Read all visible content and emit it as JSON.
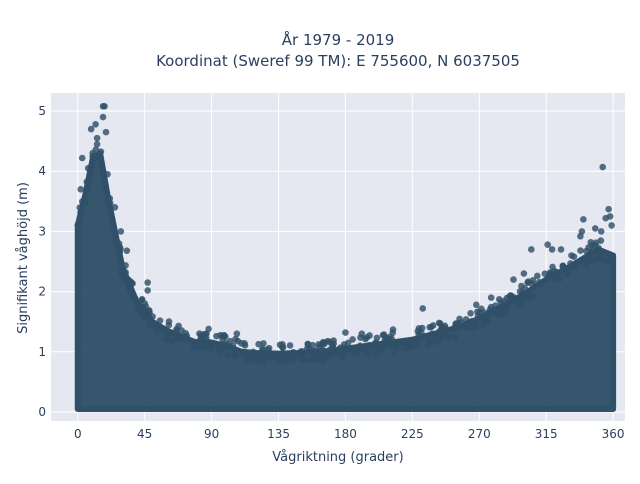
{
  "chart_data": {
    "type": "scatter",
    "title_line1": "År 1979 - 2019",
    "title_line2": "Koordinat (Sweref 99 TM): E 755600, N 6037505",
    "xlabel": "Vågriktning (grader)",
    "ylabel": "Signifikant våghöjd (m)",
    "xlim": [
      -18,
      368
    ],
    "ylim": [
      -0.15,
      5.3
    ],
    "xticks": [
      0,
      45,
      90,
      135,
      180,
      225,
      270,
      315,
      360
    ],
    "yticks": [
      0,
      1,
      2,
      3,
      4,
      5
    ],
    "grid": true,
    "legend": "none",
    "colors": {
      "marker": "#2f5068",
      "plot_bg": "#e5e8f1",
      "grid": "#ffffff",
      "text": "#2a3f5f"
    },
    "envelope": [
      {
        "x": 0,
        "y": 3.1
      },
      {
        "x": 5,
        "y": 3.6
      },
      {
        "x": 10,
        "y": 4.2
      },
      {
        "x": 15,
        "y": 4.3
      },
      {
        "x": 20,
        "y": 3.6
      },
      {
        "x": 25,
        "y": 3.0
      },
      {
        "x": 30,
        "y": 2.4
      },
      {
        "x": 35,
        "y": 2.1
      },
      {
        "x": 40,
        "y": 1.8
      },
      {
        "x": 45,
        "y": 1.7
      },
      {
        "x": 50,
        "y": 1.5
      },
      {
        "x": 60,
        "y": 1.35
      },
      {
        "x": 70,
        "y": 1.25
      },
      {
        "x": 80,
        "y": 1.15
      },
      {
        "x": 90,
        "y": 1.15
      },
      {
        "x": 100,
        "y": 1.1
      },
      {
        "x": 110,
        "y": 1.0
      },
      {
        "x": 120,
        "y": 0.98
      },
      {
        "x": 135,
        "y": 0.97
      },
      {
        "x": 150,
        "y": 0.98
      },
      {
        "x": 165,
        "y": 1.0
      },
      {
        "x": 180,
        "y": 1.05
      },
      {
        "x": 195,
        "y": 1.1
      },
      {
        "x": 210,
        "y": 1.15
      },
      {
        "x": 225,
        "y": 1.2
      },
      {
        "x": 240,
        "y": 1.3
      },
      {
        "x": 255,
        "y": 1.4
      },
      {
        "x": 270,
        "y": 1.55
      },
      {
        "x": 285,
        "y": 1.75
      },
      {
        "x": 300,
        "y": 1.95
      },
      {
        "x": 315,
        "y": 2.2
      },
      {
        "x": 330,
        "y": 2.4
      },
      {
        "x": 340,
        "y": 2.55
      },
      {
        "x": 350,
        "y": 2.7
      },
      {
        "x": 360,
        "y": 2.6
      }
    ],
    "outliers": [
      {
        "x": 17,
        "y": 5.08
      },
      {
        "x": 18,
        "y": 5.08
      },
      {
        "x": 17,
        "y": 4.9
      },
      {
        "x": 12,
        "y": 4.78
      },
      {
        "x": 9,
        "y": 4.7
      },
      {
        "x": 19,
        "y": 4.65
      },
      {
        "x": 13,
        "y": 4.55
      },
      {
        "x": 3,
        "y": 4.22
      },
      {
        "x": 13,
        "y": 4.45
      },
      {
        "x": 10,
        "y": 4.3
      },
      {
        "x": 20,
        "y": 3.95
      },
      {
        "x": 7,
        "y": 4.05
      },
      {
        "x": 2,
        "y": 3.7
      },
      {
        "x": 25,
        "y": 3.4
      },
      {
        "x": 29,
        "y": 3.0
      },
      {
        "x": 33,
        "y": 2.68
      },
      {
        "x": 47,
        "y": 2.15
      },
      {
        "x": 47,
        "y": 2.02
      },
      {
        "x": 88,
        "y": 1.38
      },
      {
        "x": 107,
        "y": 1.3
      },
      {
        "x": 180,
        "y": 1.32
      },
      {
        "x": 191,
        "y": 1.3
      },
      {
        "x": 212,
        "y": 1.37
      },
      {
        "x": 232,
        "y": 1.72
      },
      {
        "x": 243,
        "y": 1.48
      },
      {
        "x": 268,
        "y": 1.78
      },
      {
        "x": 278,
        "y": 1.9
      },
      {
        "x": 293,
        "y": 2.2
      },
      {
        "x": 300,
        "y": 2.3
      },
      {
        "x": 305,
        "y": 2.7
      },
      {
        "x": 316,
        "y": 2.78
      },
      {
        "x": 319,
        "y": 2.7
      },
      {
        "x": 325,
        "y": 2.7
      },
      {
        "x": 332,
        "y": 2.6
      },
      {
        "x": 338,
        "y": 2.92
      },
      {
        "x": 339,
        "y": 3.0
      },
      {
        "x": 340,
        "y": 3.2
      },
      {
        "x": 345,
        "y": 2.82
      },
      {
        "x": 348,
        "y": 3.05
      },
      {
        "x": 352,
        "y": 3.0
      },
      {
        "x": 353,
        "y": 4.07
      },
      {
        "x": 355,
        "y": 3.22
      },
      {
        "x": 357,
        "y": 3.37
      },
      {
        "x": 358,
        "y": 3.25
      },
      {
        "x": 359,
        "y": 3.1
      }
    ]
  }
}
